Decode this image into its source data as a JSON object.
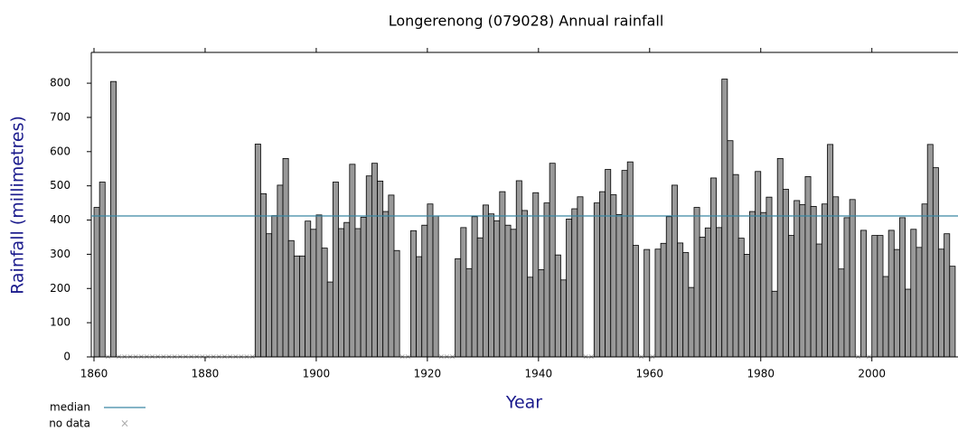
{
  "chart_data": {
    "type": "bar",
    "title": "Longerenong (079028) Annual rainfall",
    "xlabel": "Year",
    "ylabel": "Rainfall (millimetres)",
    "x": [
      1860,
      1861,
      1862,
      1863,
      1864,
      1865,
      1866,
      1867,
      1868,
      1869,
      1870,
      1871,
      1872,
      1873,
      1874,
      1875,
      1876,
      1877,
      1878,
      1879,
      1880,
      1881,
      1882,
      1883,
      1884,
      1885,
      1886,
      1887,
      1888,
      1889,
      1890,
      1891,
      1892,
      1893,
      1894,
      1895,
      1896,
      1897,
      1898,
      1899,
      1900,
      1901,
      1902,
      1903,
      1904,
      1905,
      1906,
      1907,
      1908,
      1909,
      1910,
      1911,
      1912,
      1913,
      1914,
      1915,
      1916,
      1917,
      1918,
      1919,
      1920,
      1921,
      1922,
      1923,
      1924,
      1925,
      1926,
      1927,
      1928,
      1929,
      1930,
      1931,
      1932,
      1933,
      1934,
      1935,
      1936,
      1937,
      1938,
      1939,
      1940,
      1941,
      1942,
      1943,
      1944,
      1945,
      1946,
      1947,
      1948,
      1949,
      1950,
      1951,
      1952,
      1953,
      1954,
      1955,
      1956,
      1957,
      1958,
      1959,
      1960,
      1961,
      1962,
      1963,
      1964,
      1965,
      1966,
      1967,
      1968,
      1969,
      1970,
      1971,
      1972,
      1973,
      1974,
      1975,
      1976,
      1977,
      1978,
      1979,
      1980,
      1981,
      1982,
      1983,
      1984,
      1985,
      1986,
      1987,
      1988,
      1989,
      1990,
      1991,
      1992,
      1993,
      1994,
      1995,
      1996,
      1997,
      1998,
      1999,
      2000,
      2001,
      2002,
      2003,
      2004,
      2005,
      2006,
      2007,
      2008,
      2009,
      2010,
      2011,
      2012,
      2013,
      2014
    ],
    "values": [
      437,
      511,
      null,
      805,
      null,
      null,
      null,
      null,
      null,
      null,
      null,
      null,
      null,
      null,
      null,
      null,
      null,
      null,
      null,
      null,
      null,
      null,
      null,
      null,
      null,
      null,
      null,
      null,
      null,
      622,
      477,
      360,
      413,
      502,
      580,
      340,
      295,
      295,
      397,
      373,
      415,
      318,
      219,
      511,
      375,
      393,
      563,
      375,
      408,
      529,
      566,
      514,
      425,
      473,
      311,
      null,
      null,
      369,
      293,
      385,
      447,
      412,
      null,
      null,
      null,
      287,
      378,
      258,
      410,
      348,
      444,
      418,
      398,
      483,
      385,
      373,
      515,
      428,
      233,
      480,
      255,
      450,
      566,
      298,
      225,
      403,
      433,
      468,
      null,
      null,
      450,
      483,
      548,
      474,
      416,
      545,
      570,
      326,
      null,
      314,
      null,
      315,
      332,
      410,
      502,
      333,
      305,
      203,
      437,
      350,
      377,
      523,
      378,
      812,
      632,
      533,
      347,
      300,
      425,
      542,
      422,
      467,
      192,
      580,
      490,
      355,
      457,
      445,
      527,
      440,
      330,
      447,
      621,
      468,
      257,
      407,
      460,
      null,
      370,
      null,
      355,
      355,
      235,
      370,
      314,
      407,
      198,
      373,
      320,
      447,
      621,
      553,
      315,
      360,
      265
    ],
    "color": "#999999",
    "median": 412,
    "median_label": "median",
    "median_color": "#3a87a3",
    "no_data_label": "no data",
    "xlim": [
      1860,
      2015.5
    ],
    "ylim": [
      0,
      890
    ],
    "xticks": [
      1860,
      1880,
      1900,
      1920,
      1940,
      1960,
      1980,
      2000
    ],
    "yticks": [
      0,
      100,
      200,
      300,
      400,
      500,
      600,
      700,
      800
    ]
  }
}
